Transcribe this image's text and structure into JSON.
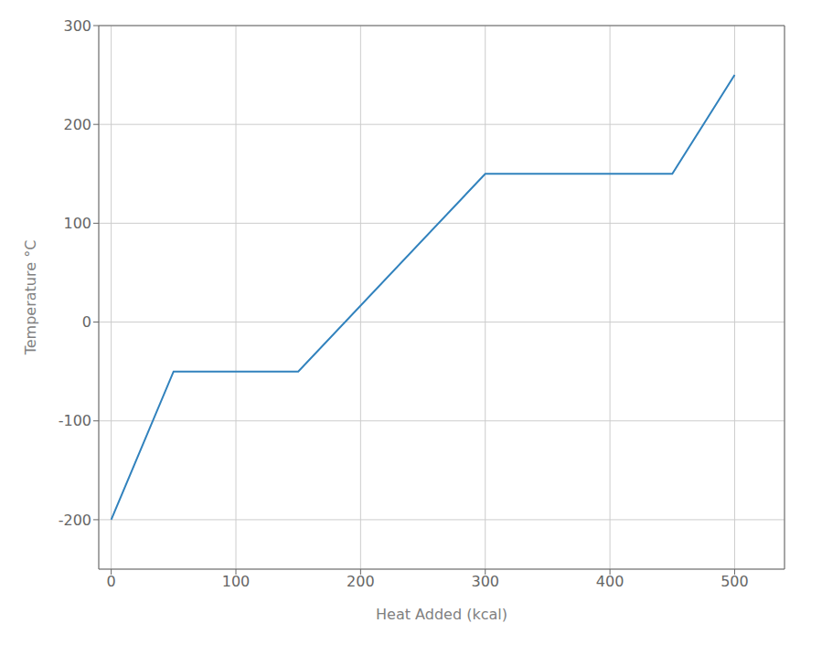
{
  "chart_data": {
    "type": "line",
    "x": [
      0,
      50,
      150,
      300,
      450,
      500
    ],
    "values": [
      -200,
      -50,
      -50,
      150,
      150,
      250
    ],
    "xlabel": "Heat Added (kcal)",
    "ylabel": "Temperature °C",
    "xlim": [
      -10,
      540
    ],
    "ylim": [
      -250,
      300
    ],
    "xticks": [
      0,
      100,
      200,
      300,
      400,
      500
    ],
    "yticks": [
      -200,
      -100,
      0,
      100,
      200,
      300
    ],
    "grid": true
  }
}
